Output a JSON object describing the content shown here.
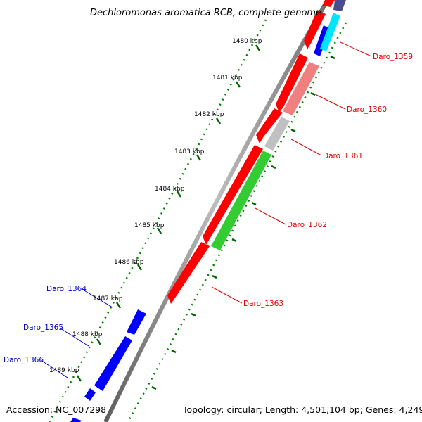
{
  "title": "Dechloromonas aromatica RCB, complete genome",
  "ticks": [
    "1480 kbp",
    "1481 kbp",
    "1482 kbp",
    "1483 kbp",
    "1484 kbp",
    "1485 kbp",
    "1486 kbp",
    "1487 kbp",
    "1488 kbp",
    "1489 kbp"
  ],
  "genes_right": [
    "Daro_1359",
    "Daro_1360",
    "Daro_1361",
    "Daro_1362",
    "Daro_1363"
  ],
  "genes_left": [
    "Daro_1364",
    "Daro_1365",
    "Daro_1366"
  ],
  "footer": {
    "accession": "Accession: NC_007298",
    "topology": "Topology: circular; Length: 4,501,104 bp; Genes: 4,249"
  },
  "colors": {
    "forward": "#ff0000",
    "reverse": "#0000ff",
    "cyan": "#00e5ff",
    "pink": "#f08080",
    "gray": "#c0c0c0",
    "green": "#33cc33",
    "backbone": "#808080",
    "tick_dots": "#008000"
  }
}
